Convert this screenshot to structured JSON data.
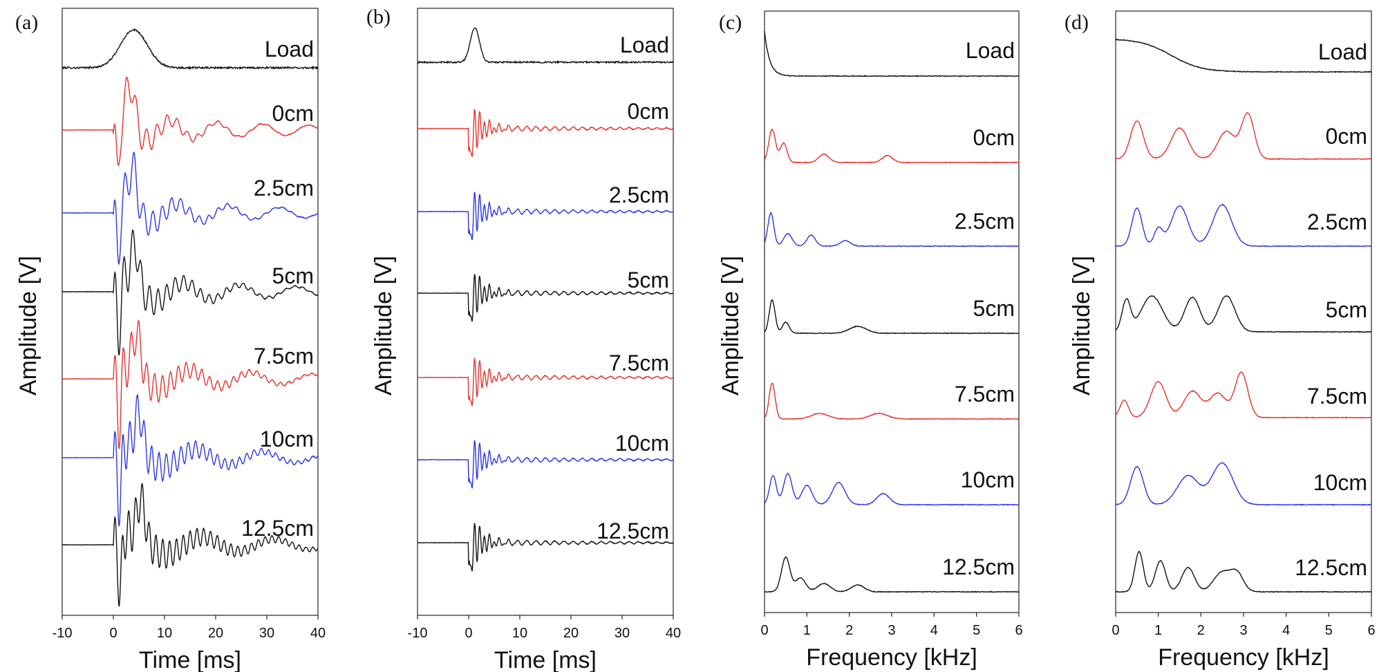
{
  "colors": {
    "black": "#111111",
    "red": "#e8302a",
    "blue": "#2a35e8"
  },
  "chart_data": [
    {
      "type": "line",
      "panel_label": "(a)",
      "xlabel": "Time [ms]",
      "ylabel": "Amplitude [V]",
      "xlim": [
        -10,
        40
      ],
      "xticks": [
        "-10",
        "0",
        "10",
        "20",
        "30",
        "40"
      ],
      "signal": "time",
      "series": [
        {
          "name": "Load",
          "color": "black"
        },
        {
          "name": "0cm",
          "color": "red"
        },
        {
          "name": "2.5cm",
          "color": "blue"
        },
        {
          "name": "5cm",
          "color": "black"
        },
        {
          "name": "7.5cm",
          "color": "red"
        },
        {
          "name": "10cm",
          "color": "blue"
        },
        {
          "name": "12.5cm",
          "color": "black"
        }
      ]
    },
    {
      "type": "line",
      "panel_label": "(b)",
      "xlabel": "Time [ms]",
      "ylabel": "Amplitude [V]",
      "xlim": [
        -10,
        40
      ],
      "xticks": [
        "-10",
        "0",
        "10",
        "20",
        "30",
        "40"
      ],
      "signal": "time-short",
      "series": [
        {
          "name": "Load",
          "color": "black"
        },
        {
          "name": "0cm",
          "color": "red"
        },
        {
          "name": "2.5cm",
          "color": "blue"
        },
        {
          "name": "5cm",
          "color": "black"
        },
        {
          "name": "7.5cm",
          "color": "red"
        },
        {
          "name": "10cm",
          "color": "blue"
        },
        {
          "name": "12.5cm",
          "color": "black"
        }
      ]
    },
    {
      "type": "line",
      "panel_label": "(c)",
      "xlabel": "Frequency [kHz]",
      "ylabel": "Amplitude [V]",
      "xlim": [
        0,
        6
      ],
      "xticks": [
        "0",
        "1",
        "2",
        "3",
        "4",
        "5",
        "6"
      ],
      "signal": "freq",
      "series": [
        {
          "name": "Load",
          "color": "black"
        },
        {
          "name": "0cm",
          "color": "red"
        },
        {
          "name": "2.5cm",
          "color": "blue"
        },
        {
          "name": "5cm",
          "color": "black"
        },
        {
          "name": "7.5cm",
          "color": "red"
        },
        {
          "name": "10cm",
          "color": "blue"
        },
        {
          "name": "12.5cm",
          "color": "black"
        }
      ]
    },
    {
      "type": "line",
      "panel_label": "(d)",
      "xlabel": "Frequency [kHz]",
      "ylabel": "Amplitude [V]",
      "xlim": [
        0,
        6
      ],
      "xticks": [
        "0",
        "1",
        "2",
        "3",
        "4",
        "5",
        "6"
      ],
      "signal": "freq-norm",
      "series": [
        {
          "name": "Load",
          "color": "black"
        },
        {
          "name": "0cm",
          "color": "red"
        },
        {
          "name": "2.5cm",
          "color": "blue"
        },
        {
          "name": "5cm",
          "color": "black"
        },
        {
          "name": "7.5cm",
          "color": "red"
        },
        {
          "name": "10cm",
          "color": "blue"
        },
        {
          "name": "12.5cm",
          "color": "black"
        }
      ]
    }
  ]
}
